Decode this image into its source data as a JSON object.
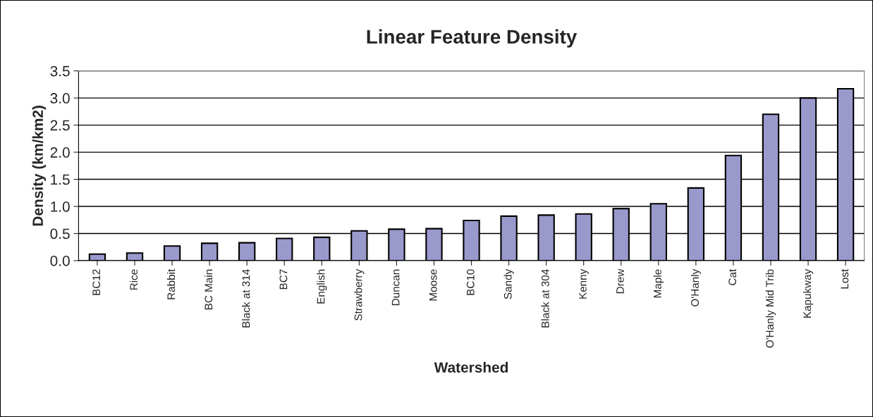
{
  "chart_data": {
    "type": "bar",
    "title": "Linear Feature Density",
    "xlabel": "Watershed",
    "ylabel": "Density (km/km2)",
    "categories": [
      "BC12",
      "Rice",
      "Rabbit",
      "BC Main",
      "Black at 314",
      "BC7",
      "English",
      "Strawberry",
      "Duncan",
      "Moose",
      "BC10",
      "Sandy",
      "Black at 304",
      "Kenny",
      "Drew",
      "Maple",
      "O'Hanly",
      "Cat",
      "O'Hanly Mid Trib",
      "Kapukway",
      "Lost"
    ],
    "values": [
      0.12,
      0.14,
      0.27,
      0.32,
      0.33,
      0.41,
      0.43,
      0.55,
      0.58,
      0.59,
      0.74,
      0.82,
      0.84,
      0.86,
      0.96,
      1.05,
      1.34,
      1.94,
      2.7,
      3.0,
      3.17
    ],
    "color": "#9999cc",
    "ylim": [
      0,
      3.5
    ],
    "yticks": [
      {
        "value": 0,
        "label": "0.0"
      },
      0.5,
      {
        "value": 1,
        "label": "1.0"
      },
      1.5,
      {
        "value": 2,
        "label": "2.0"
      },
      2.5,
      {
        "value": 3,
        "label": "3.0"
      },
      3.5
    ],
    "grid": "y"
  }
}
